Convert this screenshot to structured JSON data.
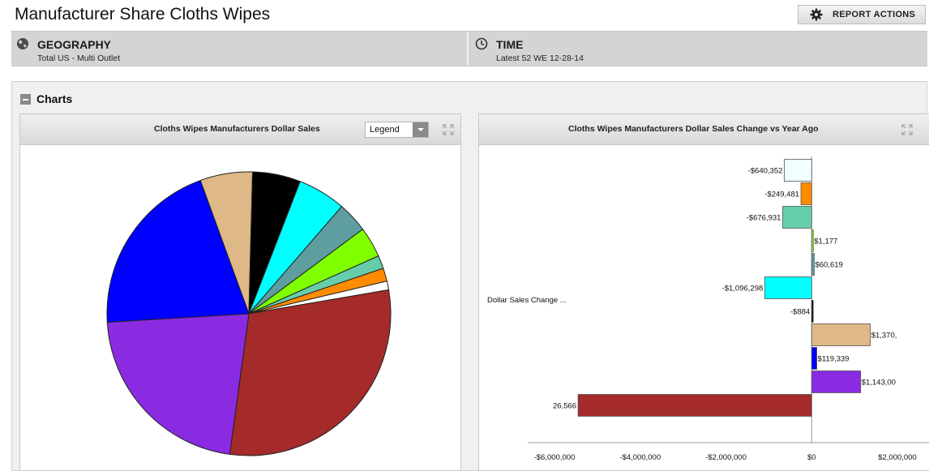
{
  "page": {
    "title": "Manufacturer Share Cloths Wipes"
  },
  "toolbar": {
    "report_actions_label": "REPORT ACTIONS"
  },
  "filters": {
    "geography": {
      "title": "GEOGRAPHY",
      "value": "Total US - Multi Outlet",
      "icon": "globe-icon"
    },
    "time": {
      "title": "TIME",
      "value": "Latest 52 WE 12-28-14",
      "icon": "clock-icon"
    }
  },
  "charts_section": {
    "label": "Charts"
  },
  "legend_select": {
    "value": "Legend"
  },
  "chart_data": [
    {
      "type": "pie",
      "title": "Cloths Wipes Manufacturers Dollar Sales",
      "slices": [
        {
          "value": 6.0,
          "color": "#deb887"
        },
        {
          "value": 5.5,
          "color": "#000000"
        },
        {
          "value": 5.5,
          "color": "#00ffff"
        },
        {
          "value": 3.5,
          "color": "#5f9ea0"
        },
        {
          "value": 3.5,
          "color": "#7fff00"
        },
        {
          "value": 1.5,
          "color": "#66cdaa"
        },
        {
          "value": 1.5,
          "color": "#ff8c00"
        },
        {
          "value": 1.0,
          "color": "#ffffff"
        },
        {
          "value": 30.0,
          "color": "#a52a2a"
        },
        {
          "value": 22.0,
          "color": "#8a2be2"
        },
        {
          "value": 20.5,
          "color": "#0000ff"
        }
      ]
    },
    {
      "type": "bar",
      "orientation": "horizontal",
      "title": "Cloths Wipes Manufacturers Dollar Sales Change vs Year Ago",
      "category_label": "Dollar Sales Change ...",
      "xlim": [
        -6000000,
        2000000
      ],
      "xticks": [
        {
          "value": -6000000,
          "label": "-$6,000,000"
        },
        {
          "value": -4000000,
          "label": "-$4,000,000"
        },
        {
          "value": -2000000,
          "label": "-$2,000,000"
        },
        {
          "value": 0,
          "label": "$0"
        },
        {
          "value": 2000000,
          "label": "$2,000,000"
        }
      ],
      "bars": [
        {
          "value": -640352,
          "label": "-$640,352",
          "color": "#f0ffff"
        },
        {
          "value": -249481,
          "label": "-$249,481",
          "color": "#ff8c00"
        },
        {
          "value": -676931,
          "label": "-$676,931",
          "color": "#66cdaa"
        },
        {
          "value": 1177,
          "label": "$1,177",
          "color": "#7fff00"
        },
        {
          "value": 60619,
          "label": "$60,619",
          "color": "#5f9ea0"
        },
        {
          "value": -1096298,
          "label": "-$1,096,298",
          "color": "#00ffff"
        },
        {
          "value": -884,
          "label": "-$884",
          "color": "#000000"
        },
        {
          "value": 1370000,
          "label": "$1,370,",
          "color": "#deb887"
        },
        {
          "value": 119339,
          "label": "$119,339",
          "color": "#0000ff"
        },
        {
          "value": 1143000,
          "label": "$1,143,00",
          "color": "#8a2be2"
        },
        {
          "value": -5450000,
          "label": "26,566",
          "color": "#a52a2a"
        }
      ]
    }
  ]
}
